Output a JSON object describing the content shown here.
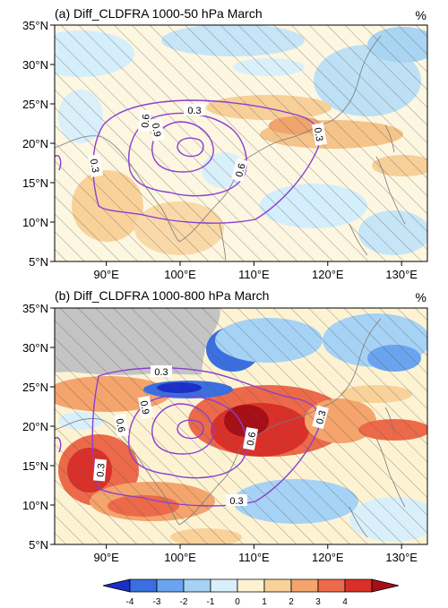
{
  "panels": [
    {
      "title": "(a) Diff_CLDFRA 1000-50 hPa  March",
      "unit": "%",
      "lat_ticks": [
        "35°N",
        "30°N",
        "25°N",
        "20°N",
        "15°N",
        "10°N",
        "5°N"
      ],
      "lon_ticks": [
        "90°E",
        "100°E",
        "110°E",
        "120°E",
        "130°E"
      ],
      "contour_labels": [
        "0.3",
        "0.6",
        "0.9",
        "0.3",
        "0.6",
        "0.3"
      ]
    },
    {
      "title": "(b) Diff_CLDFRA 1000-800 hPa  March",
      "unit": "%",
      "lat_ticks": [
        "35°N",
        "30°N",
        "25°N",
        "20°N",
        "15°N",
        "10°N",
        "5°N"
      ],
      "lon_ticks": [
        "90°E",
        "100°E",
        "110°E",
        "120°E",
        "130°E"
      ],
      "contour_labels": [
        "0.3",
        "0.9",
        "0.6",
        "0.6",
        "0.3",
        "0.3",
        "0.3"
      ]
    }
  ],
  "colorbar": {
    "labels": [
      "-4",
      "-3",
      "-2",
      "-1",
      "0",
      "1",
      "2",
      "3",
      "4"
    ],
    "colors": [
      "#1a2fc8",
      "#3b6fe0",
      "#6aa4ee",
      "#a6d3f5",
      "#d9f0fb",
      "#fdf3d3",
      "#f9d29a",
      "#f4a46c",
      "#ec6a49",
      "#d9312a",
      "#a50f15"
    ]
  },
  "map_colors": {
    "land_mask": "#c4c4c4",
    "contour": "#8a3fd1",
    "coast": "#7a7a7a"
  }
}
